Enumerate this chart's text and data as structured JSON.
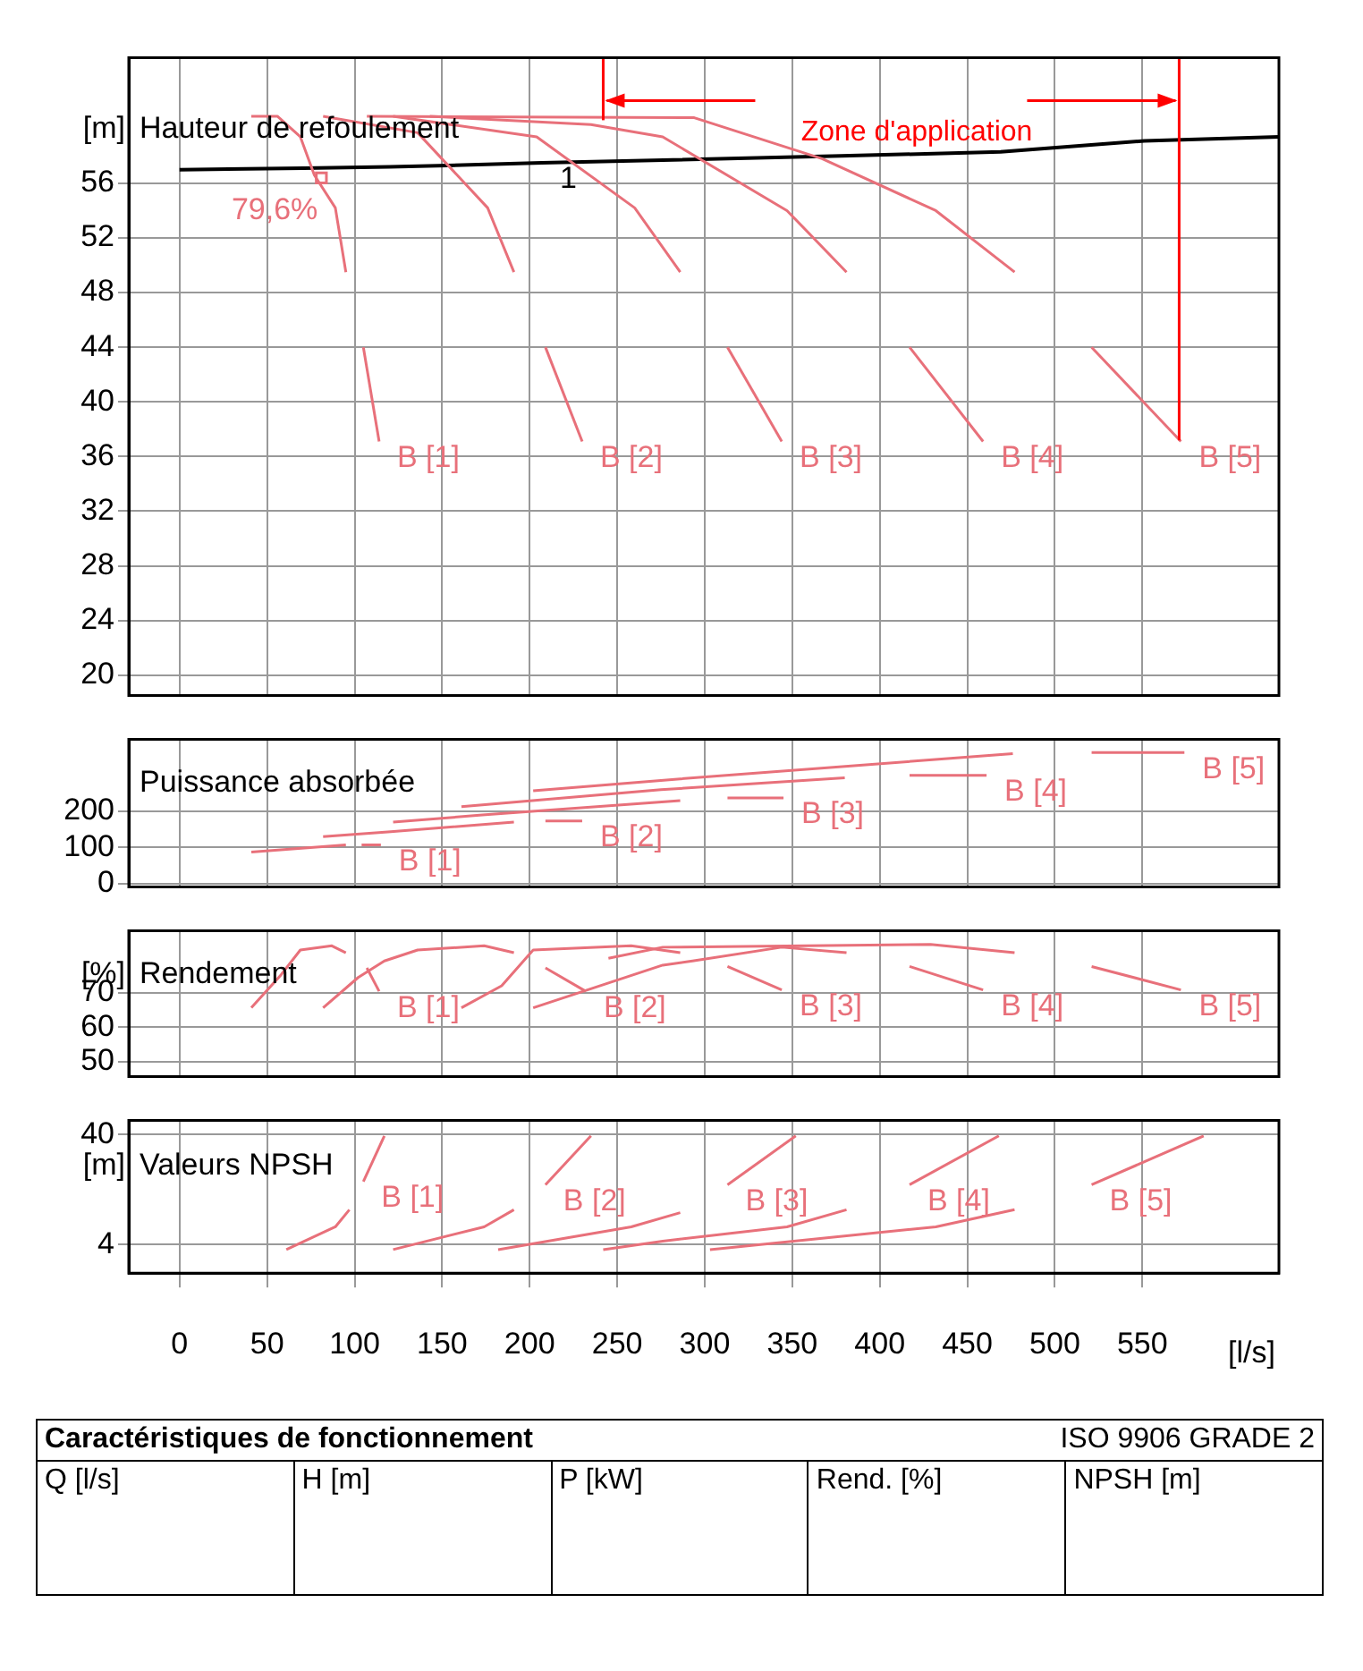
{
  "chart_data": [
    {
      "type": "line",
      "title": "Hauteur de refoulement",
      "ylabel": "[m]",
      "xlim": [
        -29,
        628
      ],
      "xticks": [
        0,
        50,
        100,
        150,
        200,
        250,
        300,
        350,
        400,
        450,
        500,
        550
      ],
      "ylim": [
        18.5,
        65.2
      ],
      "yticks": [
        20,
        24,
        28,
        32,
        36,
        40,
        44,
        48,
        52,
        56
      ],
      "grid": true,
      "tick_labels": "y",
      "series": [
        {
          "color": "#e8707a",
          "x": [
            41,
            56,
            69,
            77,
            89,
            95
          ],
          "values": [
            60.9,
            60.9,
            59.4,
            56.6,
            54.2,
            49.5
          ]
        },
        {
          "name": "B [1]",
          "color": "#e8707a",
          "x": [
            105,
            114
          ],
          "values": [
            44.0,
            37.1
          ]
        },
        {
          "color": "#e8707a",
          "x": [
            82,
            136,
            176,
            191
          ],
          "values": [
            60.9,
            59.7,
            54.2,
            49.5
          ]
        },
        {
          "name": "B [2]",
          "color": "#e8707a",
          "x": [
            209,
            230
          ],
          "values": [
            44.0,
            37.1
          ]
        },
        {
          "color": "#e8707a",
          "x": [
            122,
            204,
            260,
            286
          ],
          "values": [
            60.9,
            59.4,
            54.2,
            49.5
          ]
        },
        {
          "name": "B [3]",
          "color": "#e8707a",
          "x": [
            313,
            344
          ],
          "values": [
            44.0,
            37.1
          ]
        },
        {
          "color": "#e8707a",
          "x": [
            143,
            235,
            276,
            347,
            381
          ],
          "values": [
            60.9,
            60.3,
            59.4,
            54.0,
            49.5
          ]
        },
        {
          "name": "B [4]",
          "color": "#e8707a",
          "x": [
            417,
            459
          ],
          "values": [
            44.0,
            37.1
          ]
        },
        {
          "color": "#e8707a",
          "x": [
            107,
            294,
            367,
            432,
            477
          ],
          "values": [
            60.9,
            60.8,
            57.8,
            54.0,
            49.5
          ]
        },
        {
          "name": "B [5]",
          "color": "#e8707a",
          "x": [
            521,
            572
          ],
          "values": [
            44.0,
            37.1
          ]
        },
        {
          "name": "79,6%",
          "type": "scatter",
          "marker": "square",
          "color": "#e8707a",
          "x": [
            81
          ],
          "values": [
            56.4
          ]
        },
        {
          "name": "1",
          "color": "#000000",
          "x": [
            0,
            71,
            120,
            153,
            207,
            378,
            469,
            551,
            628
          ],
          "values": [
            57.0,
            57.1,
            57.2,
            57.3,
            57.5,
            58.0,
            58.3,
            59.1,
            59.4
          ]
        }
      ],
      "ref_lines": [
        {
          "axis": "x",
          "value": 242,
          "color": "#ff0000"
        },
        {
          "axis": "x",
          "value": 571,
          "label": "Zone d'application",
          "color": "#ff0000"
        }
      ]
    },
    {
      "type": "line",
      "title": "Puissance absorbée",
      "xlim": [
        -29,
        628
      ],
      "xticks": [
        0,
        50,
        100,
        150,
        200,
        250,
        300,
        350,
        400,
        450,
        500,
        550
      ],
      "ylim": [
        -10,
        400
      ],
      "yticks": [
        0,
        100,
        200
      ],
      "grid": true,
      "tick_labels": "y",
      "series": [
        {
          "color": "#e8707a",
          "x": [
            41,
            95
          ],
          "values": [
            87,
            107
          ]
        },
        {
          "name": "B [1]",
          "color": "#e8707a",
          "x": [
            104,
            115
          ],
          "values": [
            107,
            107
          ]
        },
        {
          "color": "#e8707a",
          "x": [
            82,
            119,
            191
          ],
          "values": [
            130,
            143,
            170
          ]
        },
        {
          "name": "B [2]",
          "color": "#e8707a",
          "x": [
            209,
            230
          ],
          "values": [
            173,
            173
          ]
        },
        {
          "color": "#e8707a",
          "x": [
            122,
            173,
            286
          ],
          "values": [
            170,
            190,
            230
          ]
        },
        {
          "name": "B [3]",
          "color": "#e8707a",
          "x": [
            313,
            345
          ],
          "values": [
            237,
            237
          ]
        },
        {
          "color": "#e8707a",
          "x": [
            161,
            275,
            380
          ],
          "values": [
            213,
            260,
            293
          ]
        },
        {
          "name": "B [4]",
          "color": "#e8707a",
          "x": [
            417,
            461
          ],
          "values": [
            300,
            300
          ]
        },
        {
          "color": "#e8707a",
          "x": [
            202,
            286,
            476
          ],
          "values": [
            257,
            290,
            360
          ]
        },
        {
          "name": "B [5]",
          "color": "#e8707a",
          "x": [
            521,
            574
          ],
          "values": [
            363,
            363
          ]
        }
      ]
    },
    {
      "type": "line",
      "title": "Rendement",
      "ylabel": "[%]",
      "xlim": [
        -29,
        628
      ],
      "xticks": [
        0,
        50,
        100,
        150,
        200,
        250,
        300,
        350,
        400,
        450,
        500,
        550
      ],
      "ylim": [
        45.6,
        88
      ],
      "yticks": [
        50,
        60,
        70
      ],
      "grid": true,
      "tick_labels": "y",
      "series": [
        {
          "color": "#e8707a",
          "x": [
            41,
            58,
            69,
            87,
            95
          ],
          "values": [
            65.6,
            75.2,
            82.4,
            83.6,
            81.6
          ]
        },
        {
          "color": "#e8707a",
          "x": [
            82,
            102,
            117,
            136,
            174,
            191
          ],
          "values": [
            65.6,
            74.4,
            79.2,
            82.4,
            83.6,
            81.6
          ]
        },
        {
          "color": "#e8707a",
          "x": [
            161,
            184,
            202,
            258,
            286
          ],
          "values": [
            65.6,
            72,
            82.4,
            83.6,
            81.6
          ]
        },
        {
          "color": "#e8707a",
          "x": [
            202,
            276,
            293,
            344,
            381
          ],
          "values": [
            65.6,
            78,
            79.2,
            83.2,
            81.6
          ]
        },
        {
          "color": "#e8707a",
          "x": [
            245,
            276,
            429,
            477
          ],
          "values": [
            80,
            83.2,
            84,
            81.6
          ]
        },
        {
          "name": "B [1]",
          "color": "#e8707a",
          "x": [
            107,
            114
          ],
          "values": [
            77.2,
            70.4
          ]
        },
        {
          "name": "B [2]",
          "color": "#e8707a",
          "x": [
            209,
            232
          ],
          "values": [
            77.2,
            70.4
          ]
        },
        {
          "name": "B [3]",
          "color": "#e8707a",
          "x": [
            313,
            344
          ],
          "values": [
            77.6,
            70.8
          ]
        },
        {
          "name": "B [4]",
          "color": "#e8707a",
          "x": [
            417,
            459
          ],
          "values": [
            77.6,
            70.8
          ]
        },
        {
          "name": "B [5]",
          "color": "#e8707a",
          "x": [
            521,
            572
          ],
          "values": [
            77.6,
            70.8
          ]
        }
      ]
    },
    {
      "type": "line",
      "title": "Valeurs NPSH",
      "ylabel": "[m]",
      "xlabel": "[l/s]",
      "xlim": [
        -29,
        628
      ],
      "xticks": [
        0,
        50,
        100,
        150,
        200,
        250,
        300,
        350,
        400,
        450,
        500,
        550
      ],
      "ylim": [
        2.2,
        54
      ],
      "yticks": [
        4,
        40
      ],
      "log": "y",
      "grid": true,
      "series": [
        {
          "color": "#e8707a",
          "x": [
            61,
            89,
            97
          ],
          "values": [
            3.6,
            5.8,
            8.3
          ]
        },
        {
          "color": "#e8707a",
          "x": [
            122,
            174,
            191
          ],
          "values": [
            3.6,
            5.8,
            8.3
          ]
        },
        {
          "color": "#e8707a",
          "x": [
            182,
            258,
            286
          ],
          "values": [
            3.6,
            5.8,
            7.8
          ]
        },
        {
          "color": "#e8707a",
          "x": [
            242,
            276,
            347,
            381
          ],
          "values": [
            3.6,
            4.3,
            5.8,
            8.3
          ]
        },
        {
          "color": "#e8707a",
          "x": [
            303,
            432,
            477
          ],
          "values": [
            3.6,
            5.8,
            8.3
          ]
        },
        {
          "name": "B [1]",
          "color": "#e8707a",
          "x": [
            117,
            105
          ],
          "values": [
            39,
            15
          ]
        },
        {
          "name": "B [2]",
          "color": "#e8707a",
          "x": [
            235,
            209
          ],
          "values": [
            39,
            14
          ]
        },
        {
          "name": "B [3]",
          "color": "#e8707a",
          "x": [
            352,
            313
          ],
          "values": [
            39,
            14
          ]
        },
        {
          "name": "B [4]",
          "color": "#e8707a",
          "x": [
            468,
            417
          ],
          "values": [
            39,
            14
          ]
        },
        {
          "name": "B [5]",
          "color": "#e8707a",
          "x": [
            585,
            521
          ],
          "values": [
            39,
            14
          ]
        }
      ]
    },
    {
      "type": "other",
      "title": "Caractéristiques de fonctionnement",
      "annotations": [
        "ISO 9906 GRADE 2",
        "Q [l/s]",
        "H [m]",
        "P [kW]",
        "Rend. [%]",
        "NPSH [m]"
      ]
    }
  ]
}
